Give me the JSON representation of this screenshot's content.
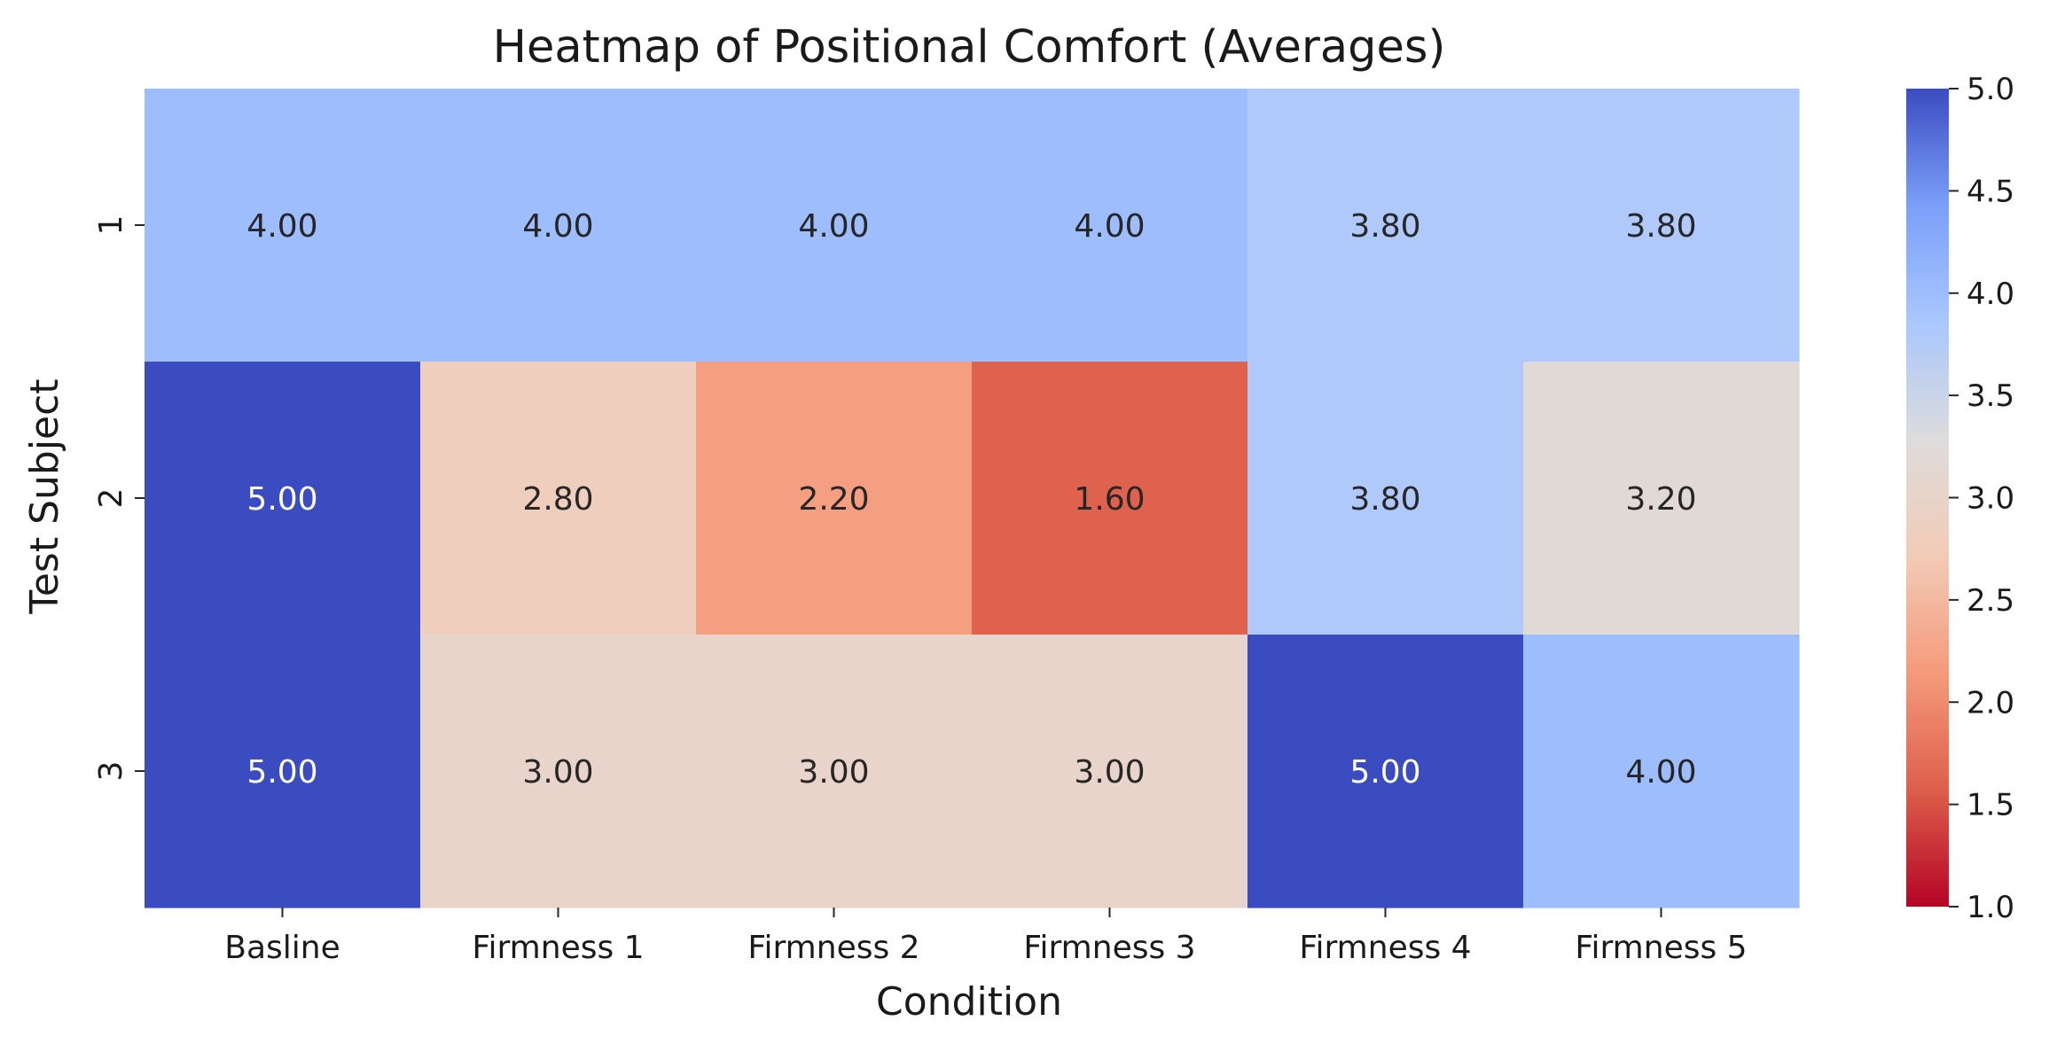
{
  "chart_data": {
    "type": "heatmap",
    "title": "Heatmap of Positional Comfort (Averages)",
    "xlabel": "Condition",
    "ylabel": "Test Subject",
    "x_categories": [
      "Basline",
      "Firmness 1",
      "Firmness 2",
      "Firmness 3",
      "Firmness 4",
      "Firmness 5"
    ],
    "y_categories": [
      "1",
      "2",
      "3"
    ],
    "values": [
      [
        4.0,
        4.0,
        4.0,
        4.0,
        3.8,
        3.8
      ],
      [
        5.0,
        2.8,
        2.2,
        1.6,
        3.8,
        3.2
      ],
      [
        5.0,
        3.0,
        3.0,
        3.0,
        5.0,
        4.0
      ]
    ],
    "value_labels": [
      [
        "4.00",
        "4.00",
        "4.00",
        "4.00",
        "3.80",
        "3.80"
      ],
      [
        "5.00",
        "2.80",
        "2.20",
        "1.60",
        "3.80",
        "3.20"
      ],
      [
        "5.00",
        "3.00",
        "3.00",
        "3.00",
        "5.00",
        "4.00"
      ]
    ],
    "colorbar": {
      "range": [
        1.0,
        5.0
      ],
      "ticks": [
        "1.0",
        "1.5",
        "2.0",
        "2.5",
        "3.0",
        "3.5",
        "4.0",
        "4.5",
        "5.0"
      ],
      "colormap": "coolwarm_r",
      "stops": [
        "#b40426",
        "#dd5f4b",
        "#f49a7b",
        "#f2cbb7",
        "#dddcdc",
        "#aac7fd",
        "#7b9ff9",
        "#3b4cc0"
      ]
    },
    "grid": false,
    "legend": "right colorbar"
  }
}
